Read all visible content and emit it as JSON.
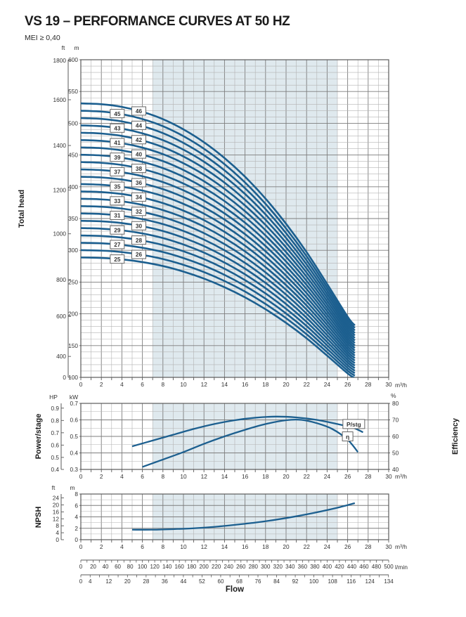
{
  "title": "VS 19 – PERFORMANCE CURVES AT 50 HZ",
  "subtitle": "MEI ≥ 0,40",
  "labels": {
    "total_head": "Total head",
    "power_stage": "Power/stage",
    "efficiency": "Efficiency",
    "npsh": "NPSH",
    "flow": "Flow",
    "ft": "ft",
    "m": "m",
    "hp": "HP",
    "kw": "kW",
    "pct": "%",
    "m3h": "m³/h",
    "lmin": "l/min"
  },
  "colors": {
    "curve": "#1c5f8f",
    "band": "#dfe9ee",
    "grid_minor": "#b3b3b3",
    "grid_major": "#7d7d7d",
    "border": "#5a5a5a",
    "text": "#333333",
    "box_border": "#666666",
    "box_bg": "#ffffff"
  },
  "chart_data": [
    {
      "id": "head",
      "type": "line",
      "ylabel": "Total head",
      "y_m": {
        "min": 100,
        "max": 600,
        "label_step": 50,
        "grid_minor": 10,
        "unit": "m"
      },
      "y_ft": {
        "unit": "ft",
        "ticks": [
          {
            "v": 1800,
            "at_m": 599
          },
          {
            "v": 1600,
            "at_m": 537
          },
          {
            "v": 1400,
            "at_m": 465
          },
          {
            "v": 1200,
            "at_m": 395
          },
          {
            "v": 1000,
            "at_m": 326
          },
          {
            "v": 800,
            "at_m": 254
          },
          {
            "v": 600,
            "at_m": 196
          },
          {
            "v": 400,
            "at_m": 133
          },
          {
            "v": 0,
            "at_m": 100
          }
        ]
      },
      "x": {
        "min": 0,
        "max": 30,
        "label_step": 2,
        "grid_minor": 1,
        "unit": "m³/h"
      },
      "band": [
        7,
        25
      ],
      "stages": [
        25,
        26,
        27,
        28,
        29,
        30,
        31,
        32,
        33,
        34,
        35,
        36,
        37,
        38,
        39,
        40,
        41,
        42,
        43,
        44,
        45,
        46
      ],
      "per_stage_head": {
        "q": [
          0,
          2,
          4,
          6,
          8,
          10,
          12,
          14,
          16,
          18,
          20,
          22,
          24,
          26,
          26.7
        ],
        "h_m": [
          11.55,
          11.52,
          11.43,
          11.26,
          11.01,
          10.66,
          10.22,
          9.68,
          9.04,
          8.29,
          7.43,
          6.46,
          5.37,
          4.25,
          3.95
        ]
      },
      "stage_label_q": {
        "odd": 3.55,
        "even": 5.65
      }
    },
    {
      "id": "power_eff",
      "type": "line",
      "ylabel_left": "Power/stage",
      "ylabel_right": "Efficiency",
      "y_kw": {
        "min": 0.3,
        "max": 0.7,
        "label_step": 0.1,
        "grid_minor": 0.05,
        "unit": "kW"
      },
      "y_hp": {
        "unit": "HP",
        "ticks": [
          0.4,
          0.5,
          0.6,
          0.7,
          0.8,
          0.9
        ]
      },
      "y_pct": {
        "min": 40,
        "max": 80,
        "label_step": 10,
        "unit": "%"
      },
      "x": {
        "min": 0,
        "max": 30,
        "label_step": 2,
        "grid_minor": 1,
        "unit": "m³/h"
      },
      "band": [
        7,
        25
      ],
      "series": [
        {
          "name": "P/stg",
          "axis": "kw",
          "label_at": {
            "q": 26.6,
            "v": 0.575
          },
          "points": {
            "q": [
              5,
              7,
              9,
              11,
              13,
              15,
              17,
              19,
              21,
              23,
              25,
              26.5,
              27.5
            ],
            "v": [
              0.44,
              0.475,
              0.51,
              0.545,
              0.575,
              0.598,
              0.613,
              0.62,
              0.615,
              0.6,
              0.575,
              0.553,
              0.525
            ]
          }
        },
        {
          "name": "η",
          "axis": "pct",
          "label_at": {
            "q": 26.0,
            "v": 60
          },
          "points": {
            "q": [
              6,
              8,
              10,
              12,
              14,
              16,
              18,
              20,
              21.5,
              23,
              24.5,
              26,
              27
            ],
            "v": [
              41.5,
              46,
              50.5,
              55.5,
              60,
              64,
              67.5,
              69.8,
              70,
              68,
              64.5,
              58,
              50.5
            ]
          }
        }
      ]
    },
    {
      "id": "npsh",
      "type": "line",
      "ylabel": "NPSH",
      "y_m": {
        "min": 0,
        "max": 8,
        "label_step": 2,
        "grid_minor": 1,
        "unit": "m"
      },
      "y_ft": {
        "unit": "ft",
        "ticks": [
          0,
          4,
          8,
          12,
          16,
          20,
          24
        ]
      },
      "x": {
        "min": 0,
        "max": 30,
        "label_step": 2,
        "grid_minor": 1,
        "unit": "m³/h"
      },
      "band": [
        7,
        25
      ],
      "series": [
        {
          "name": "NPSH",
          "axis": "m",
          "points": {
            "q": [
              5,
              7,
              9,
              11,
              13,
              15,
              17,
              19,
              21,
              23,
              25,
              26.7
            ],
            "v": [
              1.75,
              1.75,
              1.85,
              2.0,
              2.25,
              2.6,
              3.0,
              3.5,
              4.1,
              4.8,
              5.6,
              6.4
            ]
          }
        }
      ]
    }
  ],
  "flow_scales": {
    "lmin": {
      "unit": "l/min",
      "min": 0,
      "max": 500,
      "label_step": 20,
      "tick_step": 10,
      "per_m3h": 16.6667
    },
    "gpm": {
      "axis_label": "Flow",
      "tick_step": 4,
      "per_m3h": 4.4029,
      "labels": [
        0,
        4,
        12,
        20,
        28,
        36,
        44,
        52,
        60,
        68,
        76,
        84,
        92,
        100,
        108,
        116,
        124,
        134
      ]
    }
  }
}
